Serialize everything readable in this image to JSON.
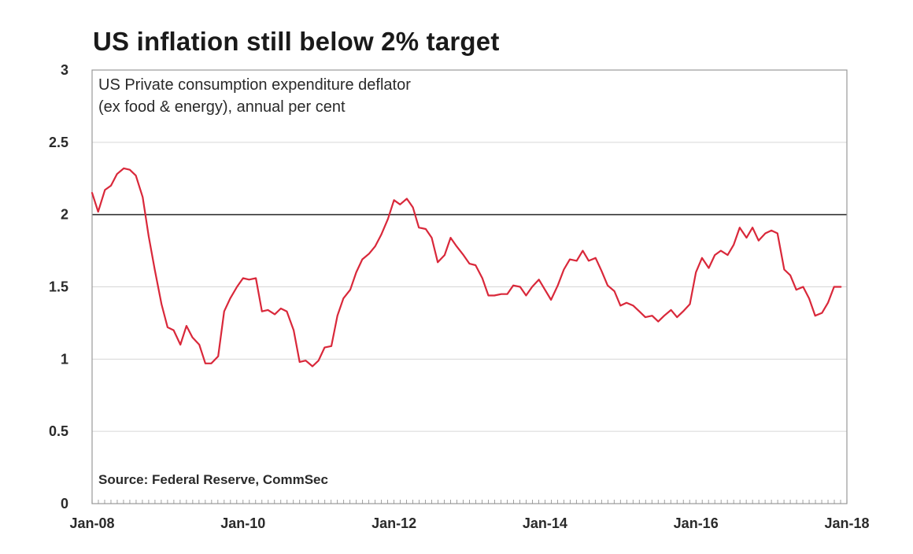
{
  "chart_data": {
    "type": "line",
    "title": "US inflation still below 2% target",
    "subtitle_lines": [
      "US Private consumption expenditure deflator",
      "(ex food & energy), annual per cent"
    ],
    "source": "Source: Federal Reserve, CommSec",
    "xlabel": "",
    "ylabel": "",
    "xlim": [
      2008.0,
      2018.0
    ],
    "ylim": [
      0,
      3
    ],
    "y_ticks": [
      0,
      0.5,
      1,
      1.5,
      2,
      2.5,
      3
    ],
    "y_tick_labels": [
      "0",
      "0.5",
      "1",
      "1.5",
      "2",
      "2.5",
      "3"
    ],
    "x_ticks": [
      2008,
      2010,
      2012,
      2014,
      2016,
      2018
    ],
    "x_tick_labels": [
      "Jan-08",
      "Jan-10",
      "Jan-12",
      "Jan-14",
      "Jan-16",
      "Jan-18"
    ],
    "grid": true,
    "reference_line": {
      "y": 2,
      "color": "#333333"
    },
    "series": [
      {
        "color": "#d9283a",
        "x": [
          2008.0,
          2008.08,
          2008.17,
          2008.25,
          2008.33,
          2008.42,
          2008.5,
          2008.58,
          2008.67,
          2008.75,
          2008.83,
          2008.92,
          2009.0,
          2009.08,
          2009.17,
          2009.25,
          2009.33,
          2009.42,
          2009.5,
          2009.58,
          2009.67,
          2009.75,
          2009.83,
          2009.92,
          2010.0,
          2010.08,
          2010.17,
          2010.25,
          2010.33,
          2010.42,
          2010.5,
          2010.58,
          2010.67,
          2010.75,
          2010.83,
          2010.92,
          2011.0,
          2011.08,
          2011.17,
          2011.25,
          2011.33,
          2011.42,
          2011.5,
          2011.58,
          2011.67,
          2011.75,
          2011.83,
          2011.92,
          2012.0,
          2012.08,
          2012.17,
          2012.25,
          2012.33,
          2012.42,
          2012.5,
          2012.58,
          2012.67,
          2012.75,
          2012.83,
          2012.92,
          2013.0,
          2013.08,
          2013.17,
          2013.25,
          2013.33,
          2013.42,
          2013.5,
          2013.58,
          2013.67,
          2013.75,
          2013.83,
          2013.92,
          2014.0,
          2014.08,
          2014.17,
          2014.25,
          2014.33,
          2014.42,
          2014.5,
          2014.58,
          2014.67,
          2014.75,
          2014.83,
          2014.92,
          2015.0,
          2015.08,
          2015.17,
          2015.25,
          2015.33,
          2015.42,
          2015.5,
          2015.58,
          2015.67,
          2015.75,
          2015.83,
          2015.92,
          2016.0,
          2016.08,
          2016.17,
          2016.25,
          2016.33,
          2016.42,
          2016.5,
          2016.58,
          2016.67,
          2016.75,
          2016.83,
          2016.92,
          2017.0,
          2017.08,
          2017.17,
          2017.25,
          2017.33,
          2017.42,
          2017.5,
          2017.58,
          2017.67,
          2017.75,
          2017.83,
          2017.92
        ],
        "values": [
          2.15,
          2.02,
          2.17,
          2.2,
          2.28,
          2.32,
          2.31,
          2.27,
          2.12,
          1.85,
          1.62,
          1.38,
          1.22,
          1.2,
          1.1,
          1.23,
          1.15,
          1.1,
          0.97,
          0.97,
          1.02,
          1.33,
          1.42,
          1.5,
          1.56,
          1.55,
          1.56,
          1.33,
          1.34,
          1.31,
          1.35,
          1.33,
          1.2,
          0.98,
          0.99,
          0.95,
          0.99,
          1.08,
          1.09,
          1.3,
          1.42,
          1.48,
          1.6,
          1.69,
          1.73,
          1.78,
          1.86,
          1.97,
          2.1,
          2.07,
          2.11,
          2.05,
          1.91,
          1.9,
          1.84,
          1.67,
          1.72,
          1.84,
          1.78,
          1.72,
          1.66,
          1.65,
          1.56,
          1.44,
          1.44,
          1.45,
          1.45,
          1.51,
          1.5,
          1.44,
          1.5,
          1.55,
          1.48,
          1.41,
          1.51,
          1.62,
          1.69,
          1.68,
          1.75,
          1.68,
          1.7,
          1.61,
          1.51,
          1.47,
          1.37,
          1.39,
          1.37,
          1.33,
          1.29,
          1.3,
          1.26,
          1.3,
          1.34,
          1.29,
          1.33,
          1.38,
          1.6,
          1.7,
          1.63,
          1.72,
          1.75,
          1.72,
          1.79,
          1.91,
          1.84,
          1.91,
          1.82,
          1.87,
          1.89,
          1.87,
          1.62,
          1.58,
          1.48,
          1.5,
          1.42,
          1.3,
          1.32,
          1.39,
          1.5,
          1.5
        ]
      }
    ]
  }
}
